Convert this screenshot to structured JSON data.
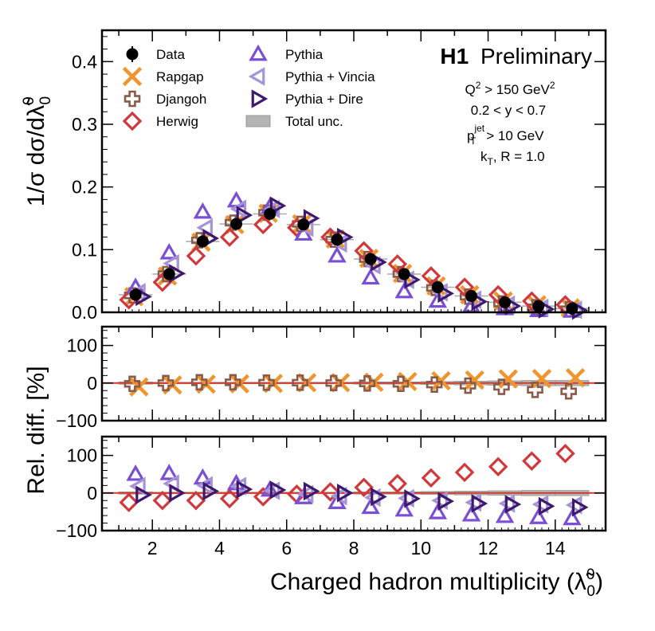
{
  "chart_data": {
    "type": "scatter",
    "header": {
      "label_bold": "H1",
      "label_rest": "Preliminary"
    },
    "conditions": [
      {
        "parts": [
          "Q",
          "2",
          " > 150 GeV",
          "2"
        ],
        "sup": [
          false,
          true,
          false,
          true
        ]
      },
      {
        "text": "0.2 < y < 0.7"
      },
      {
        "text_main": "p",
        "sub": "T",
        "sup": "jet",
        "text_rest": " > 10 GeV"
      },
      {
        "text_main": "k",
        "sub": "T",
        "text_rest": ", R = 1.0"
      }
    ],
    "xlabel": "Charged hadron multiplicity (λ̃⁰₀)",
    "xlabel_text": "Charged hadron multiplicity (",
    "xlabel_sym": "λ̃",
    "xlabel_sup": "0",
    "xlabel_sub": "0",
    "xlabel_close": ")",
    "xlim": [
      0.5,
      15.5
    ],
    "xticks": [
      2,
      4,
      6,
      8,
      10,
      12,
      14
    ],
    "colors": {
      "data": "#000000",
      "rapgap": "#f0952e",
      "djangoh": "#8a5a4a",
      "herwig": "#d1383b",
      "pythia": "#7b4fd4",
      "vincia": "#a594d6",
      "dire": "#3d1a6e",
      "total_unc": "#b5b5b5",
      "ref_line": "#d43a2a"
    },
    "legend": {
      "col1": [
        {
          "key": "data",
          "label": "Data",
          "marker": "dot"
        },
        {
          "key": "rapgap",
          "label": "Rapgap",
          "marker": "x"
        },
        {
          "key": "djangoh",
          "label": "Djangoh",
          "marker": "plus"
        },
        {
          "key": "herwig",
          "label": "Herwig",
          "marker": "diamond"
        }
      ],
      "col2": [
        {
          "key": "pythia",
          "label": "Pythia",
          "marker": "tri-up"
        },
        {
          "key": "vincia",
          "label": "Pythia + Vincia",
          "marker": "tri-left"
        },
        {
          "key": "dire",
          "label": "Pythia + Dire",
          "marker": "tri-right"
        },
        {
          "key": "total_unc",
          "label": "Total unc.",
          "marker": "box"
        }
      ]
    },
    "panels": [
      {
        "name": "distribution",
        "ylabel": "1/σ dσ/dλ̃⁰₀",
        "ylabel_text": "1/σ dσ/d",
        "ylabel_sym": "λ̃",
        "ylabel_sup": "0",
        "ylabel_sub": "0",
        "ylim": [
          0,
          0.45
        ],
        "yticks": [
          0.0,
          0.1,
          0.2,
          0.3,
          0.4
        ],
        "ytick_labels": [
          "0.0",
          "0.1",
          "0.2",
          "0.3",
          "0.4"
        ],
        "series": [
          {
            "key": "data",
            "x": [
              1.5,
              2.5,
              3.5,
              4.5,
              5.5,
              6.5,
              7.5,
              8.5,
              9.5,
              10.5,
              11.5,
              12.5,
              13.5,
              14.5
            ],
            "values": [
              0.028,
              0.061,
              0.113,
              0.141,
              0.157,
              0.14,
              0.116,
              0.085,
              0.061,
              0.04,
              0.026,
              0.016,
              0.01,
              0.006
            ]
          },
          {
            "key": "rapgap",
            "x": [
              1.45,
              2.45,
              3.45,
              4.45,
              5.45,
              6.45,
              7.45,
              8.45,
              9.45,
              10.45,
              11.45,
              12.45,
              13.45,
              14.45
            ],
            "values": [
              0.025,
              0.058,
              0.112,
              0.14,
              0.158,
              0.141,
              0.117,
              0.086,
              0.062,
              0.042,
              0.028,
              0.018,
              0.012,
              0.007
            ]
          },
          {
            "key": "djangoh",
            "x": [
              1.4,
              2.4,
              3.4,
              4.4,
              5.4,
              6.4,
              7.4,
              8.4,
              9.4,
              10.4,
              11.4,
              12.4,
              13.4,
              14.4
            ],
            "values": [
              0.027,
              0.061,
              0.115,
              0.143,
              0.159,
              0.141,
              0.116,
              0.085,
              0.061,
              0.039,
              0.025,
              0.014,
              0.008,
              0.005
            ]
          },
          {
            "key": "herwig",
            "x": [
              1.3,
              2.3,
              3.3,
              4.3,
              5.3,
              6.3,
              7.3,
              8.3,
              9.3,
              10.3,
              11.3,
              12.3,
              13.3,
              14.3
            ],
            "values": [
              0.02,
              0.048,
              0.09,
              0.12,
              0.14,
              0.135,
              0.12,
              0.098,
              0.077,
              0.058,
              0.04,
              0.028,
              0.018,
              0.012
            ]
          },
          {
            "key": "pythia",
            "x": [
              1.5,
              2.5,
              3.5,
              4.5,
              5.5,
              6.5,
              7.5,
              8.5,
              9.5,
              10.5,
              11.5,
              12.5,
              13.5,
              14.5
            ],
            "values": [
              0.04,
              0.095,
              0.16,
              0.178,
              0.168,
              0.125,
              0.09,
              0.055,
              0.033,
              0.018,
              0.01,
              0.006,
              0.003,
              0.002
            ]
          },
          {
            "key": "vincia",
            "x": [
              1.6,
              2.6,
              3.6,
              4.6,
              5.6,
              6.6,
              7.6,
              8.6,
              9.6,
              10.6,
              11.6,
              12.6,
              13.6,
              14.6
            ],
            "values": [
              0.032,
              0.078,
              0.135,
              0.165,
              0.165,
              0.135,
              0.11,
              0.075,
              0.052,
              0.032,
              0.02,
              0.012,
              0.007,
              0.004
            ]
          },
          {
            "key": "dire",
            "x": [
              1.7,
              2.7,
              3.7,
              4.7,
              5.7,
              6.7,
              7.7,
              8.7,
              9.7,
              10.7,
              11.7,
              12.7,
              13.7,
              14.7
            ],
            "values": [
              0.025,
              0.062,
              0.118,
              0.155,
              0.17,
              0.15,
              0.12,
              0.08,
              0.052,
              0.03,
              0.017,
              0.01,
              0.005,
              0.003
            ]
          }
        ]
      },
      {
        "name": "ratio-djangoh-rapgap",
        "ylim": [
          -100,
          150
        ],
        "yticks": [
          -100,
          0,
          100
        ],
        "ytick_labels": [
          "−100",
          "0",
          "100"
        ],
        "unc_band": {
          "x": [
            1.5,
            2.5,
            3.5,
            4.5,
            5.5,
            6.5,
            7.5,
            8.5,
            9.5,
            10.5,
            11.5,
            12.5,
            13.5,
            14.5
          ],
          "half_width": [
            3,
            2,
            2,
            2,
            2,
            2,
            2,
            3,
            3,
            4,
            5,
            6,
            7,
            7
          ]
        },
        "series": [
          {
            "key": "rapgap",
            "x": [
              1.6,
              2.6,
              3.6,
              4.6,
              5.6,
              6.6,
              7.6,
              8.6,
              9.6,
              10.6,
              11.6,
              12.6,
              13.6,
              14.6
            ],
            "values": [
              -10,
              -5,
              -3,
              -2,
              -1,
              1,
              1,
              2,
              4,
              6,
              8,
              11,
              12,
              14
            ]
          },
          {
            "key": "djangoh",
            "x": [
              1.4,
              2.4,
              3.4,
              4.4,
              5.4,
              6.4,
              7.4,
              8.4,
              9.4,
              10.4,
              11.4,
              12.4,
              13.4,
              14.4
            ],
            "values": [
              -2,
              0,
              2,
              2,
              1,
              1,
              0,
              -1,
              -2,
              -4,
              -7,
              -10,
              -18,
              -22
            ]
          }
        ]
      },
      {
        "name": "ratio-herwig-pythia",
        "ylabel": "Rel. diff. [%]",
        "ylim": [
          -100,
          150
        ],
        "yticks": [
          -100,
          0,
          100
        ],
        "ytick_labels": [
          "−100",
          "0",
          "100"
        ],
        "unc_band": {
          "x": [
            1.5,
            2.5,
            3.5,
            4.5,
            5.5,
            6.5,
            7.5,
            8.5,
            9.5,
            10.5,
            11.5,
            12.5,
            13.5,
            14.5
          ],
          "half_width": [
            3,
            2,
            2,
            2,
            2,
            2,
            2,
            3,
            3,
            4,
            5,
            6,
            7,
            7
          ]
        },
        "series": [
          {
            "key": "herwig",
            "x": [
              1.3,
              2.3,
              3.3,
              4.3,
              5.3,
              6.3,
              7.3,
              8.3,
              9.3,
              10.3,
              11.3,
              12.3,
              13.3,
              14.3
            ],
            "values": [
              -25,
              -20,
              -20,
              -15,
              -10,
              -3,
              3,
              15,
              25,
              40,
              55,
              70,
              85,
              105
            ]
          },
          {
            "key": "pythia",
            "x": [
              1.5,
              2.5,
              3.5,
              4.5,
              5.5,
              6.5,
              7.5,
              8.5,
              9.5,
              10.5,
              11.5,
              12.5,
              13.5,
              14.5
            ],
            "values": [
              50,
              52,
              40,
              25,
              8,
              -12,
              -25,
              -38,
              -45,
              -52,
              -58,
              -62,
              -65,
              -68
            ]
          },
          {
            "key": "vincia",
            "x": [
              1.6,
              2.6,
              3.6,
              4.6,
              5.6,
              6.6,
              7.6,
              8.6,
              9.6,
              10.6,
              11.6,
              12.6,
              13.6,
              14.6
            ],
            "values": [
              18,
              25,
              20,
              18,
              6,
              -3,
              -8,
              -12,
              -14,
              -20,
              -25,
              -28,
              -30,
              -32
            ]
          },
          {
            "key": "dire",
            "x": [
              1.7,
              2.7,
              3.7,
              4.7,
              5.7,
              6.7,
              7.7,
              8.7,
              9.7,
              10.7,
              11.7,
              12.7,
              13.7,
              14.7
            ],
            "values": [
              -5,
              0,
              5,
              10,
              8,
              5,
              0,
              -10,
              -15,
              -22,
              -28,
              -30,
              -35,
              -38
            ]
          }
        ]
      }
    ]
  }
}
